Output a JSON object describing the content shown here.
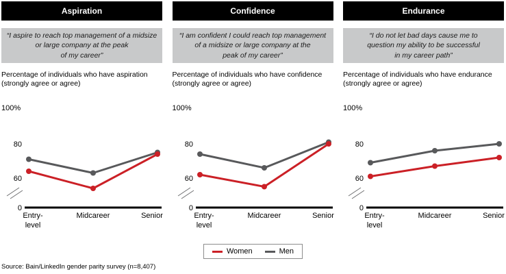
{
  "panels": [
    {
      "header": "Aspiration",
      "quote_lines": [
        "“I aspire to reach top management of a midsize",
        "or large company at the peak",
        "of my career”"
      ],
      "desc_lines": [
        "Percentage of individuals who have aspiration",
        "(strongly agree or agree)"
      ],
      "unit_label": "100%"
    },
    {
      "header": "Confidence",
      "quote_lines": [
        "“I am confident I could reach top management",
        "of a midsize or large company at the",
        "peak of my career”"
      ],
      "desc_lines": [
        "Percentage of individuals who have confidence",
        "(strongly agree or agree)"
      ],
      "unit_label": "100%"
    },
    {
      "header": "Endurance",
      "quote_lines": [
        "“I do not let bad days cause me to",
        "question my ability to be successful",
        "in my career path”"
      ],
      "desc_lines": [
        "Percentage of individuals who have endurance",
        "(strongly agree or agree)"
      ],
      "unit_label": "100%"
    }
  ],
  "chart_data": [
    {
      "type": "line",
      "title": "Aspiration",
      "categories": [
        "Entry-level",
        "Midcareer",
        "Senior"
      ],
      "categories_lines": [
        [
          "Entry-",
          "level"
        ],
        [
          "Midcareer"
        ],
        [
          "Senior"
        ]
      ],
      "series": [
        {
          "name": "Men",
          "color": "#58595b",
          "values": [
            71,
            63,
            75
          ]
        },
        {
          "name": "Women",
          "color": "#cb2026",
          "values": [
            64,
            54,
            74
          ]
        }
      ],
      "yticks": [
        80,
        60,
        0
      ],
      "ylim": [
        0,
        100
      ],
      "axis_break": true,
      "grid": false
    },
    {
      "type": "line",
      "title": "Confidence",
      "categories": [
        "Entry-level",
        "Midcareer",
        "Senior"
      ],
      "categories_lines": [
        [
          "Entry-",
          "level"
        ],
        [
          "Midcareer"
        ],
        [
          "Senior"
        ]
      ],
      "series": [
        {
          "name": "Men",
          "color": "#58595b",
          "values": [
            74,
            66,
            81
          ]
        },
        {
          "name": "Women",
          "color": "#cb2026",
          "values": [
            62,
            55,
            80
          ]
        }
      ],
      "yticks": [
        80,
        60,
        0
      ],
      "ylim": [
        0,
        100
      ],
      "axis_break": true,
      "grid": false
    },
    {
      "type": "line",
      "title": "Endurance",
      "categories": [
        "Entry-level",
        "Midcareer",
        "Senior"
      ],
      "categories_lines": [
        [
          "Entry-",
          "level"
        ],
        [
          "Midcareer"
        ],
        [
          "Senior"
        ]
      ],
      "series": [
        {
          "name": "Men",
          "color": "#58595b",
          "values": [
            69,
            76,
            80
          ]
        },
        {
          "name": "Women",
          "color": "#cb2026",
          "values": [
            61,
            67,
            72
          ]
        }
      ],
      "yticks": [
        80,
        60,
        0
      ],
      "ylim": [
        0,
        100
      ],
      "axis_break": true,
      "grid": false
    }
  ],
  "legend": {
    "items": [
      {
        "label": "Women",
        "color": "#cb2026"
      },
      {
        "label": "Men",
        "color": "#58595b"
      }
    ]
  },
  "source": "Source: Bain/LinkedIn gender parity survey (n=8,407)",
  "colors": {
    "women": "#cb2026",
    "men": "#58595b",
    "header_bg": "#000000",
    "quote_bg": "#c8c9ca"
  }
}
